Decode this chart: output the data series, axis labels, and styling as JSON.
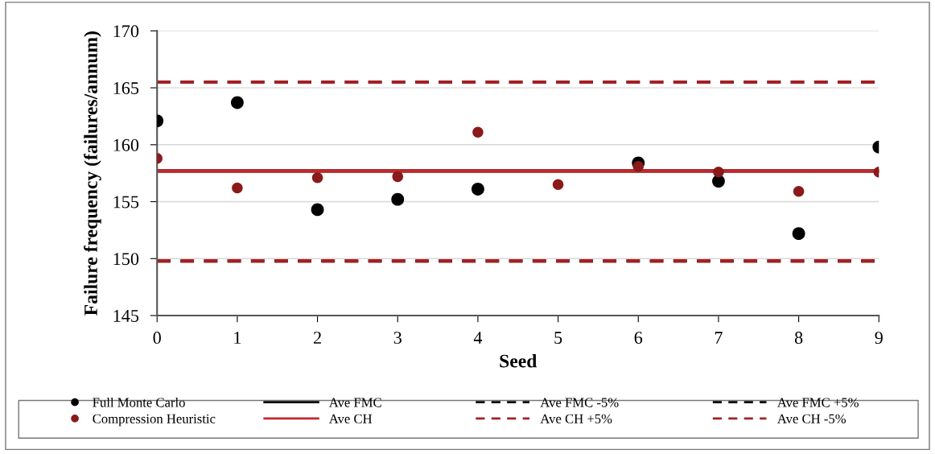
{
  "chart_data": {
    "type": "scatter",
    "xlabel": "Seed",
    "ylabel": "Failure frequency (failures/annum)",
    "x": [
      0,
      1,
      2,
      3,
      4,
      5,
      6,
      7,
      8,
      9
    ],
    "series": [
      {
        "name": "Full Monte Carlo",
        "color": "#000000",
        "values": [
          162.1,
          163.7,
          154.3,
          155.2,
          156.1,
          null,
          158.4,
          156.8,
          152.2,
          159.8
        ]
      },
      {
        "name": "Compression Heuristic",
        "color": "#8b1a1a",
        "values": [
          158.8,
          156.2,
          157.1,
          157.2,
          161.1,
          156.5,
          158.1,
          157.6,
          155.9,
          157.6
        ]
      }
    ],
    "ref_lines": [
      {
        "axis": "y",
        "value": 157.7,
        "label": "Ave FMC",
        "color": "#000000",
        "line_style": "solid"
      },
      {
        "axis": "y",
        "value": 149.8,
        "label": "Ave FMC -5%",
        "color": "#000000",
        "line_style": "dashed"
      },
      {
        "axis": "y",
        "value": 165.5,
        "label": "Ave FMC +5%",
        "color": "#000000",
        "line_style": "dashed"
      },
      {
        "axis": "y",
        "value": 157.7,
        "label": "Ave CH",
        "color": "#c0282d",
        "line_style": "solid"
      },
      {
        "axis": "y",
        "value": 165.5,
        "label": "Ave CH +5%",
        "color": "#a32025",
        "line_style": "dashed"
      },
      {
        "axis": "y",
        "value": 149.8,
        "label": "Ave CH -5%",
        "color": "#a32025",
        "line_style": "dashed"
      }
    ],
    "xlim": [
      0,
      9
    ],
    "xticks": [
      0,
      1,
      2,
      3,
      4,
      5,
      6,
      7,
      8,
      9
    ],
    "ylim": [
      145,
      170
    ],
    "yticks": [
      145,
      150,
      155,
      160,
      165,
      170
    ],
    "grid": "y",
    "legend": "bottom",
    "marker": "circle"
  }
}
